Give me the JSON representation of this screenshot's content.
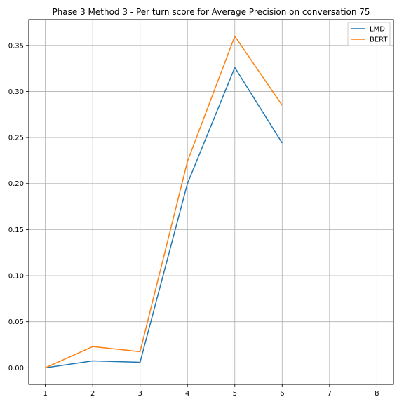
{
  "chart_data": {
    "type": "line",
    "title": "Phase 3 Method 3 - Per turn score for Average Precision on conversation 75",
    "xlabel": "",
    "ylabel": "",
    "x": [
      1,
      2,
      3,
      4,
      5,
      6
    ],
    "xlim": [
      0.65,
      8.35
    ],
    "ylim": [
      -0.018,
      0.378
    ],
    "xticks": [
      1,
      2,
      3,
      4,
      5,
      6,
      7,
      8
    ],
    "yticks": [
      0.0,
      0.05,
      0.1,
      0.15,
      0.2,
      0.25,
      0.3,
      0.35
    ],
    "ytick_labels": [
      "0.00",
      "0.05",
      "0.10",
      "0.15",
      "0.20",
      "0.25",
      "0.30",
      "0.35"
    ],
    "grid": true,
    "legend_position": "top-right",
    "series": [
      {
        "name": "LMD",
        "color": "#1f77b4",
        "values": [
          0.0,
          0.0075,
          0.006,
          0.2,
          0.326,
          0.244
        ]
      },
      {
        "name": "BERT",
        "color": "#ff7f0e",
        "values": [
          0.0,
          0.023,
          0.0175,
          0.224,
          0.36,
          0.285
        ]
      }
    ]
  }
}
